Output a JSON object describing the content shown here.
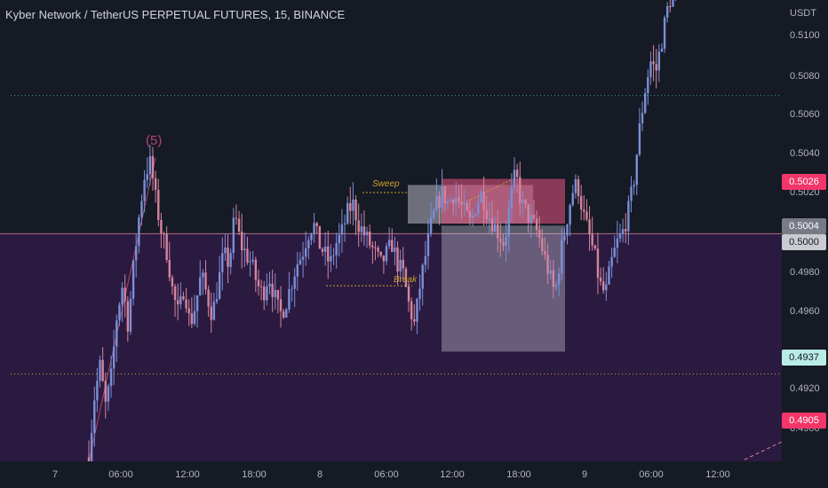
{
  "header": {
    "title": "Kyber Network / TetherUS PERPETUAL FUTURES, 15, BINANCE"
  },
  "y_axis": {
    "unit": "USDT",
    "labels": [
      "0.5100",
      "0.5080",
      "0.5060",
      "0.5040",
      "0.5020",
      "0.4980",
      "0.4960",
      "0.4920",
      "0.4900"
    ]
  },
  "price_badges": [
    {
      "text": "0.5026",
      "value": 0.5026,
      "bg": "#f23669",
      "fg": "#ffffff"
    },
    {
      "text": "0.5004",
      "value": 0.5004,
      "bg": "#787b86",
      "fg": "#ffffff"
    },
    {
      "text": "0.5000",
      "value": 0.5,
      "bg": "#c9cbd1",
      "fg": "#131722"
    },
    {
      "text": "0.4937",
      "value": 0.4937,
      "bg": "#b8ece4",
      "fg": "#131722"
    },
    {
      "text": "0.4905",
      "value": 0.4905,
      "bg": "#f23669",
      "fg": "#ffffff"
    }
  ],
  "x_axis": {
    "labels": [
      "7",
      "06:00",
      "12:00",
      "18:00",
      "8",
      "06:00",
      "12:00",
      "18:00",
      "9",
      "06:00",
      "12:00"
    ]
  },
  "annotations": {
    "sweep": "Sweep",
    "break": "Break",
    "wave": "(5)"
  },
  "colors": {
    "background": "#161a25",
    "zone": "#2b1a3f",
    "candle_up": "#7b8fd6",
    "candle_down": "#d5849e",
    "sell_box": "#d9507a",
    "range_box": "#d7dae4"
  },
  "chart_data": {
    "type": "candlestick",
    "symbol": "Kyber Network / TetherUS PERPETUAL FUTURES",
    "interval": "15",
    "exchange": "BINANCE",
    "ylim": [
      0.4888,
      0.5115
    ],
    "y_ticks": [
      0.51,
      0.508,
      0.506,
      0.504,
      0.502,
      0.498,
      0.496,
      0.492,
      0.49
    ],
    "x_ticks": [
      "7",
      "06:00",
      "12:00",
      "18:00",
      "8",
      "06:00",
      "12:00",
      "18:00",
      "9",
      "06:00",
      "12:00"
    ],
    "path": [
      [
        0.489,
        0.492,
        0.4935,
        0.4915,
        0.493,
        0.496,
        0.4975,
        0.4955,
        0.4985,
        0.501,
        0.503,
        0.5035,
        0.5015,
        0.5
      ],
      [
        0.499,
        0.497,
        0.496,
        0.4975,
        0.4955,
        0.4965,
        0.498,
        0.497,
        0.496,
        0.4975,
        0.499,
        0.4985,
        0.501,
        0.4995,
        0.499,
        0.4985,
        0.4975,
        0.497,
        0.498,
        0.497,
        0.496,
        0.4965,
        0.4975,
        0.4985,
        0.499,
        0.5,
        0.5005,
        0.4995,
        0.499,
        0.4985,
        0.4995,
        0.5,
        0.501,
        0.5015,
        0.5005,
        0.5,
        0.4995,
        0.499,
        0.4985,
        0.499,
        0.4995,
        0.4985
      ],
      [
        0.498,
        0.4965,
        0.4955,
        0.4975,
        0.499,
        0.5005,
        0.5015,
        0.502,
        0.5015,
        0.502,
        0.5015,
        0.501,
        0.5005,
        0.5015,
        0.502,
        0.501,
        0.5005,
        0.5,
        0.4995,
        0.5015,
        0.503,
        0.5015,
        0.501,
        0.5005,
        0.5,
        0.499,
        0.498,
        0.497
      ],
      [
        0.499,
        0.5005,
        0.502,
        0.5025,
        0.501,
        0.5,
        0.499,
        0.4975,
        0.497,
        0.4985,
        0.4995,
        0.5,
        0.501,
        0.5025,
        0.505,
        0.507,
        0.5085,
        0.508,
        0.5095,
        0.511,
        0.512,
        0.5125,
        0.513
      ]
    ],
    "lines": [
      {
        "name": "zone-top",
        "y": 0.5,
        "style": "solid",
        "color": "#d5849e"
      },
      {
        "name": "upper-dotted",
        "y": 0.5068,
        "style": "dotted",
        "color": "#26a69a"
      },
      {
        "name": "lower-dotted",
        "y": 0.4931,
        "style": "dotted",
        "color": "#c9a227"
      }
    ],
    "zone": {
      "from": 0.4888,
      "to": 0.5
    },
    "boxes": [
      {
        "name": "sweep-box",
        "y1": 0.5024,
        "y2": 0.5005,
        "color": "#d7dae4",
        "opacity": 0.45
      },
      {
        "name": "sell-box",
        "y1": 0.5027,
        "y2": 0.5005,
        "color": "#d9507a",
        "opacity": 0.6
      },
      {
        "name": "range-box",
        "y1": 0.5004,
        "y2": 0.4942,
        "color": "#d7dae4",
        "opacity": 0.35
      }
    ],
    "legend": "none",
    "grid": false
  }
}
